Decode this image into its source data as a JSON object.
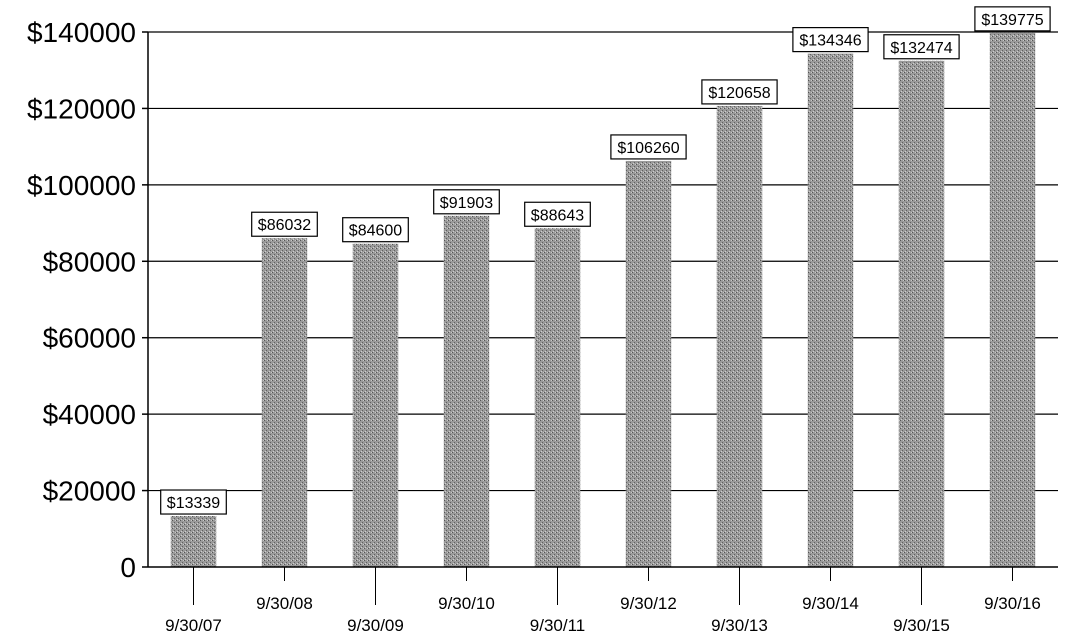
{
  "chart_data": {
    "type": "bar",
    "categories": [
      "9/30/07",
      "9/30/08",
      "9/30/09",
      "9/30/10",
      "9/30/11",
      "9/30/12",
      "9/30/13",
      "9/30/14",
      "9/30/15",
      "9/30/16"
    ],
    "values": [
      13339,
      86032,
      84600,
      91903,
      88643,
      106260,
      120658,
      134346,
      132474,
      139775
    ],
    "data_labels": [
      "$13339",
      "$86032",
      "$84600",
      "$91903",
      "$88643",
      "$106260",
      "$120658",
      "$134346",
      "$132474",
      "$139775"
    ],
    "ytick_labels": [
      "0",
      "$20000",
      "$40000",
      "$60000",
      "$80000",
      "$100000",
      "$120000",
      "$140000"
    ],
    "ytick_values": [
      0,
      20000,
      40000,
      60000,
      80000,
      100000,
      120000,
      140000
    ],
    "ylim": [
      0,
      140000
    ],
    "grid": true,
    "bar_color": "#8a8a8a"
  }
}
